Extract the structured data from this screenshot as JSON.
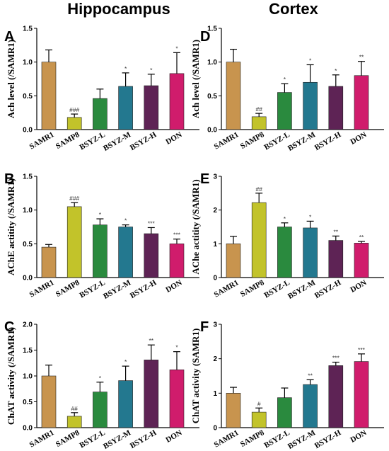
{
  "titles": {
    "left": "Hippocampus",
    "right": "Cortex"
  },
  "colors": [
    "#c8944e",
    "#c2c32a",
    "#2a8a3e",
    "#23788f",
    "#5e2355",
    "#d01c6c"
  ],
  "chart_data": [
    {
      "panel": "A",
      "type": "bar",
      "ylabel": "Ach level (/SAMR1)",
      "ylim": [
        0,
        1.5
      ],
      "yticks": [
        "0.0",
        "0.5",
        "1.0",
        "1.5"
      ],
      "categories": [
        "SAMR1",
        "SAMP8",
        "BSYZ-L",
        "BSYZ-M",
        "BSYZ-H",
        "DON"
      ],
      "values": [
        1.0,
        0.18,
        0.46,
        0.64,
        0.65,
        0.83
      ],
      "errors": [
        0.18,
        0.05,
        0.14,
        0.2,
        0.17,
        0.31
      ],
      "annotations": [
        "",
        "###",
        "",
        "*",
        "*",
        "*"
      ]
    },
    {
      "panel": "D",
      "type": "bar",
      "ylabel": "Ach level (/SAMR1)",
      "ylim": [
        0,
        1.5
      ],
      "yticks": [
        "0.0",
        "0.5",
        "1.0",
        "1.5"
      ],
      "categories": [
        "SAMR1",
        "SAMP8",
        "BSYZ-L",
        "BSYZ-M",
        "BSYZ-H",
        "DON"
      ],
      "values": [
        1.0,
        0.19,
        0.55,
        0.7,
        0.64,
        0.8
      ],
      "errors": [
        0.19,
        0.05,
        0.13,
        0.26,
        0.17,
        0.21
      ],
      "annotations": [
        "",
        "##",
        "*",
        "*",
        "*",
        "**"
      ]
    },
    {
      "panel": "B",
      "type": "bar",
      "ylabel": "AChE actitity  (/SAMR1)",
      "ylim": [
        0,
        1.5
      ],
      "yticks": [
        "0.0",
        "0.5",
        "1.0",
        "1.5"
      ],
      "categories": [
        "SAMR1",
        "SAMP8",
        "BSYZ-L",
        "BSYZ-M",
        "BSYZ-H",
        "DON"
      ],
      "values": [
        0.45,
        1.05,
        0.78,
        0.75,
        0.65,
        0.5
      ],
      "errors": [
        0.04,
        0.06,
        0.09,
        0.03,
        0.09,
        0.07
      ],
      "annotations": [
        "",
        "###",
        "*",
        "*",
        "***",
        "***"
      ]
    },
    {
      "panel": "E",
      "type": "bar",
      "ylabel": "AChe actitity  (/SAMR1)",
      "ylim": [
        0,
        3
      ],
      "yticks": [
        "0",
        "1",
        "2",
        "3"
      ],
      "categories": [
        "SAMR1",
        "SAMP8",
        "BSYZ-L",
        "BSYZ-M",
        "BSYZ-H",
        "DON"
      ],
      "values": [
        1.0,
        2.22,
        1.5,
        1.47,
        1.1,
        1.02
      ],
      "errors": [
        0.22,
        0.28,
        0.12,
        0.2,
        0.13,
        0.05
      ],
      "annotations": [
        "",
        "##",
        "*",
        "*",
        "**",
        "**"
      ]
    },
    {
      "panel": "C",
      "type": "bar",
      "ylabel": "ChAT activity (/SAMR1)",
      "ylim": [
        0,
        2.0
      ],
      "yticks": [
        "0.0",
        "0.5",
        "1.0",
        "1.5",
        "2.0"
      ],
      "categories": [
        "SAMR1",
        "SAMP8",
        "BSYZ-L",
        "BSYZ-M",
        "BSYZ-H",
        "DON"
      ],
      "values": [
        1.0,
        0.22,
        0.69,
        0.91,
        1.31,
        1.12
      ],
      "errors": [
        0.21,
        0.07,
        0.19,
        0.28,
        0.29,
        0.35
      ],
      "annotations": [
        "",
        "##",
        "*",
        "*",
        "**",
        "*"
      ]
    },
    {
      "panel": "F",
      "type": "bar",
      "ylabel": "ChAT activity (SAMR1)",
      "ylim": [
        0,
        3
      ],
      "yticks": [
        "0",
        "1",
        "2",
        "3"
      ],
      "categories": [
        "SAMR1",
        "SAMP8",
        "BSYZ-L",
        "BSYZ-M",
        "BSYZ-H",
        "DON"
      ],
      "values": [
        1.0,
        0.45,
        0.87,
        1.25,
        1.8,
        1.92
      ],
      "errors": [
        0.17,
        0.12,
        0.28,
        0.14,
        0.1,
        0.22
      ],
      "annotations": [
        "",
        "#",
        "",
        "**",
        "***",
        "***"
      ]
    }
  ]
}
